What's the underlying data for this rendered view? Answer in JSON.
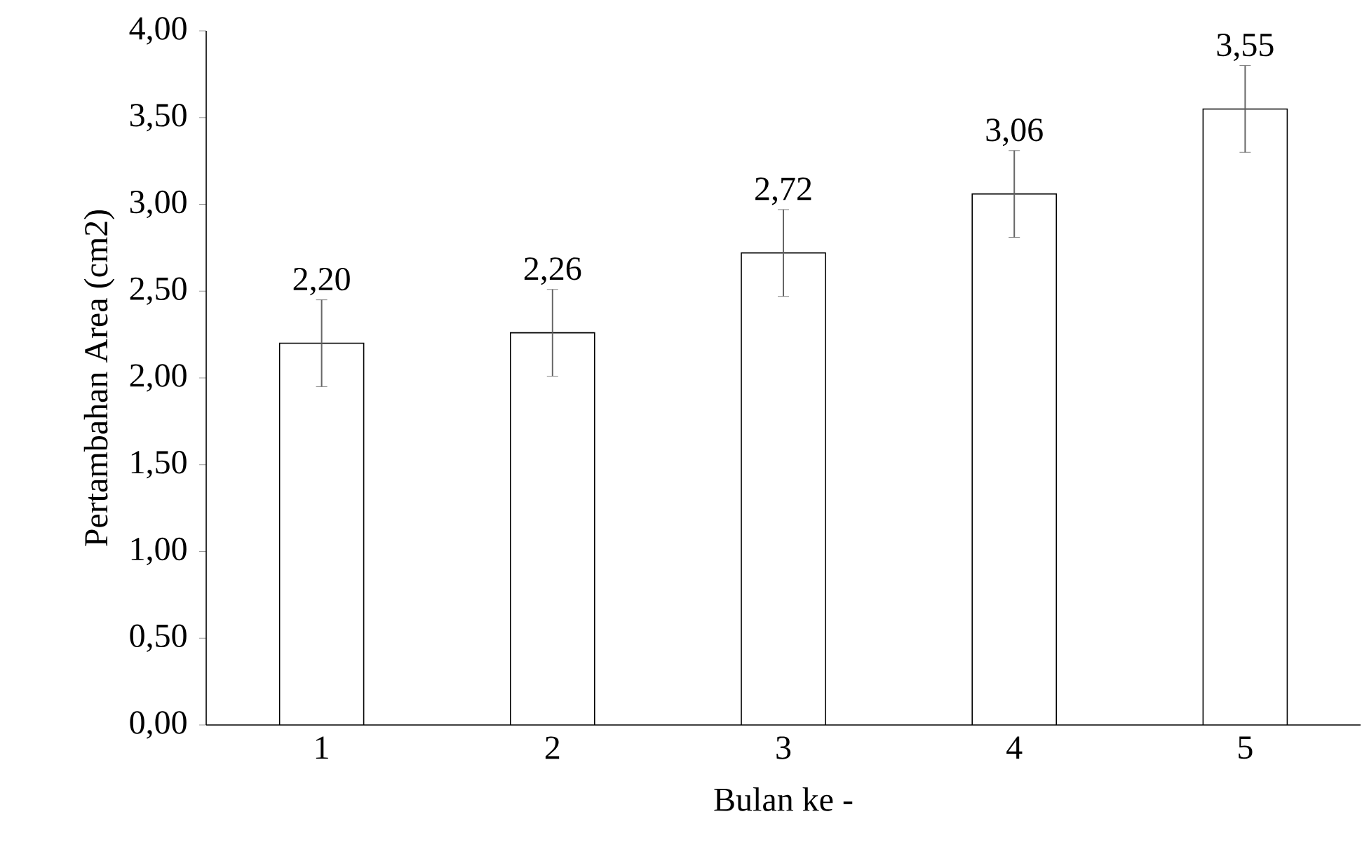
{
  "chart_data": {
    "type": "bar",
    "xlabel": "Bulan ke -",
    "ylabel": "Pertambahan Area (cm2)",
    "categories": [
      "1",
      "2",
      "3",
      "4",
      "5"
    ],
    "values": [
      2.2,
      2.26,
      2.72,
      3.06,
      3.55
    ],
    "errors": [
      0.25,
      0.25,
      0.25,
      0.25,
      0.25
    ],
    "value_labels": [
      "2,20",
      "2,26",
      "2,72",
      "3,06",
      "3,55"
    ],
    "color": "#ffffff",
    "ylim": [
      0,
      4
    ],
    "yticks": [
      {
        "value": 0,
        "label": "0,00"
      },
      {
        "value": 0.5,
        "label": "0,50"
      },
      {
        "value": 1,
        "label": "1,00"
      },
      {
        "value": 1.5,
        "label": "1,50"
      },
      {
        "value": 2,
        "label": "2,00"
      },
      {
        "value": 2.5,
        "label": "2,50"
      },
      {
        "value": 3,
        "label": "3,00"
      },
      {
        "value": 3.5,
        "label": "3,50"
      },
      {
        "value": 4,
        "label": "4,00"
      }
    ],
    "grid": false
  }
}
